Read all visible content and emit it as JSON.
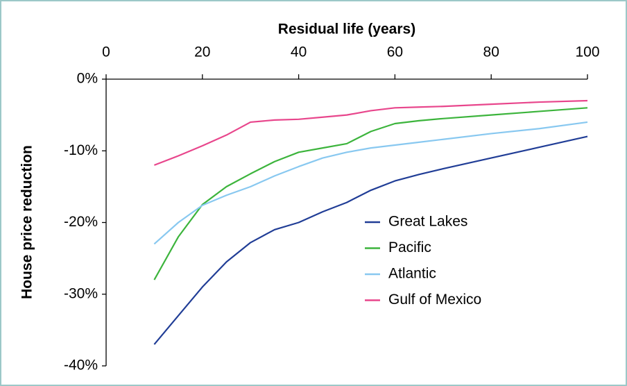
{
  "chart_data": {
    "type": "line",
    "xlabel": "Residual life (years)",
    "ylabel": "House price reduction",
    "x": [
      10,
      15,
      20,
      25,
      30,
      35,
      40,
      45,
      50,
      55,
      60,
      65,
      70,
      80,
      90,
      100
    ],
    "series": [
      {
        "name": "Great Lakes",
        "color": "#203d96",
        "values": [
          -37,
          -33,
          -29,
          -25.5,
          -22.8,
          -21,
          -20,
          -18.5,
          -17.2,
          -15.5,
          -14.2,
          -13.3,
          -12.5,
          -11,
          -9.5,
          -8
        ]
      },
      {
        "name": "Pacific",
        "color": "#3cb43c",
        "values": [
          -28,
          -22,
          -17.5,
          -15,
          -13.2,
          -11.5,
          -10.2,
          -9.6,
          -9,
          -7.3,
          -6.2,
          -5.8,
          -5.5,
          -5,
          -4.5,
          -4
        ]
      },
      {
        "name": "Atlantic",
        "color": "#88c8f0",
        "values": [
          -23,
          -20,
          -17.6,
          -16.2,
          -15,
          -13.5,
          -12.2,
          -11,
          -10.2,
          -9.6,
          -9.2,
          -8.8,
          -8.4,
          -7.6,
          -6.9,
          -6
        ]
      },
      {
        "name": "Gulf of Mexico",
        "color": "#e8468c",
        "values": [
          -12,
          -10.7,
          -9.3,
          -7.8,
          -6,
          -5.7,
          -5.6,
          -5.3,
          -5,
          -4.4,
          -4,
          -3.9,
          -3.8,
          -3.5,
          -3.2,
          -3
        ]
      }
    ],
    "xlim": [
      0,
      100
    ],
    "xticks": [
      0,
      20,
      40,
      60,
      80,
      100
    ],
    "ylim": [
      -40,
      0
    ],
    "yticks": [
      {
        "value": 0,
        "label": "0%"
      },
      {
        "value": -10,
        "label": "-10%"
      },
      {
        "value": -20,
        "label": "-20%"
      },
      {
        "value": -30,
        "label": "-30%"
      },
      {
        "value": -40,
        "label": "-40%"
      }
    ],
    "legend": "center right"
  }
}
